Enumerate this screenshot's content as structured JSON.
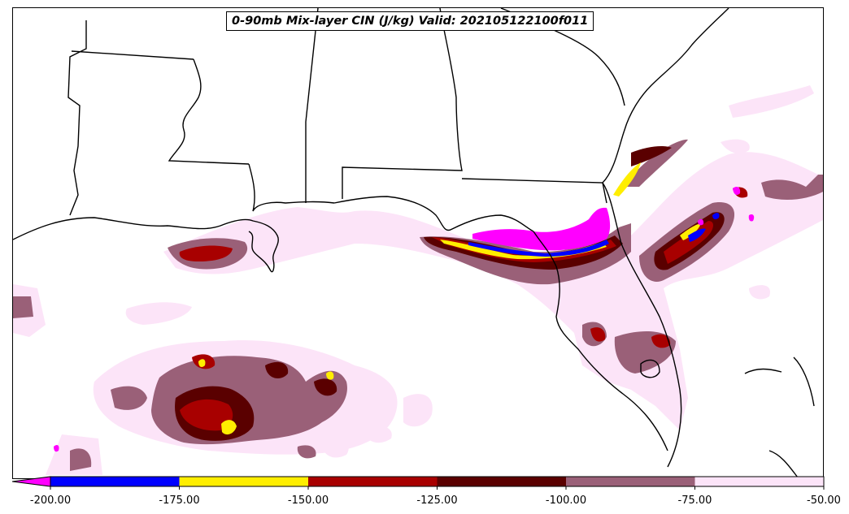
{
  "title": "0-90mb Mix-layer CIN (J/kg) Valid: 202105122100f011",
  "colorbar": {
    "extend": "min",
    "levels": [
      -200,
      -175,
      -150,
      -125,
      -100,
      -75,
      -50
    ],
    "colors": [
      "#0000ff",
      "#ffee00",
      "#a80000",
      "#5a0000",
      "#9a6078",
      "#fce4f8"
    ],
    "under_color": "#ff00ff",
    "tick_labels": [
      "-200.00",
      "-175.00",
      "-150.00",
      "-125.00",
      "-100.00",
      "-75.00",
      "-50.00"
    ]
  },
  "map": {
    "region": "Gulf of Mexico / Southeastern United States",
    "background": "#ffffff",
    "boundary_color": "#000000"
  }
}
